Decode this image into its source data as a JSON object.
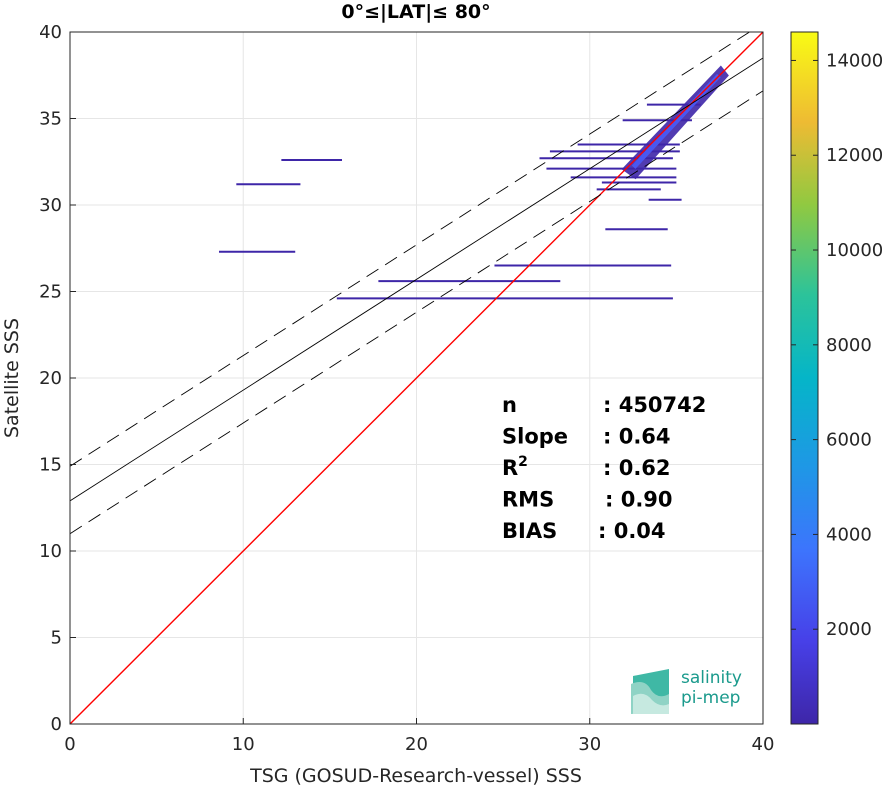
{
  "chart_data": {
    "type": "heatmap",
    "title": "0°≤|LAT|≤ 80°",
    "xlabel": "TSG (GOSUD-Research-vessel) SSS",
    "ylabel": "Satellite SSS",
    "xlim": [
      0,
      40
    ],
    "ylim": [
      0,
      40
    ],
    "xticks": [
      "0",
      "10",
      "20",
      "30",
      "40"
    ],
    "yticks": [
      "0",
      "5",
      "10",
      "15",
      "20",
      "25",
      "30",
      "35",
      "40"
    ],
    "grid": true,
    "colorbar": {
      "range": [
        0,
        14600
      ],
      "ticks": [
        "2000",
        "4000",
        "6000",
        "8000",
        "10000",
        "12000",
        "14000"
      ],
      "colormap": "parula"
    },
    "lines": [
      {
        "kind": "one-to-one",
        "color": "#ff0000",
        "slope": 1,
        "intercept": 0
      },
      {
        "kind": "regression",
        "color": "#000000",
        "slope": 0.64,
        "intercept": 12.9
      },
      {
        "kind": "upper-bound",
        "color": "#000000",
        "dashed": true,
        "slope": 0.64,
        "intercept": 14.9
      },
      {
        "kind": "lower-bound",
        "color": "#000000",
        "dashed": true,
        "slope": 0.64,
        "intercept": 11.0
      }
    ],
    "horizontal_streaks": [
      {
        "x0": 12.2,
        "x1": 15.7,
        "y": 32.6
      },
      {
        "x0": 9.6,
        "x1": 13.3,
        "y": 31.2
      },
      {
        "x0": 8.6,
        "x1": 13.0,
        "y": 27.3
      },
      {
        "x0": 24.5,
        "x1": 34.7,
        "y": 26.5
      },
      {
        "x0": 17.8,
        "x1": 28.3,
        "y": 25.6
      },
      {
        "x0": 15.4,
        "x1": 34.8,
        "y": 24.6
      },
      {
        "x0": 29.3,
        "x1": 35.2,
        "y": 33.5
      },
      {
        "x0": 27.7,
        "x1": 35.2,
        "y": 33.1
      },
      {
        "x0": 27.1,
        "x1": 34.8,
        "y": 32.7
      },
      {
        "x0": 27.5,
        "x1": 35.0,
        "y": 32.1
      },
      {
        "x0": 28.9,
        "x1": 35.0,
        "y": 31.6
      },
      {
        "x0": 30.7,
        "x1": 35.0,
        "y": 31.3
      },
      {
        "x0": 30.4,
        "x1": 34.1,
        "y": 30.9
      },
      {
        "x0": 33.4,
        "x1": 35.3,
        "y": 30.3
      },
      {
        "x0": 30.9,
        "x1": 34.5,
        "y": 28.6
      },
      {
        "x0": 31.9,
        "x1": 35.9,
        "y": 34.9
      },
      {
        "x0": 33.3,
        "x1": 36.4,
        "y": 35.8
      }
    ],
    "density_core": {
      "x0": 32.3,
      "x1": 37.8,
      "y_at_x0": 32.3,
      "y_at_x1": 37.6
    },
    "stats": [
      {
        "label": "n",
        "value": ": 450742"
      },
      {
        "label": "Slope",
        "value": ": 0.64"
      },
      {
        "label": "R",
        "sup": "2",
        "value": ": 0.62"
      },
      {
        "label": "RMS",
        "value": ": 0.90"
      },
      {
        "label": "BIAS",
        "value": ": 0.04"
      }
    ]
  },
  "logo": {
    "line1": "salinity",
    "line2": "pi-mep"
  }
}
